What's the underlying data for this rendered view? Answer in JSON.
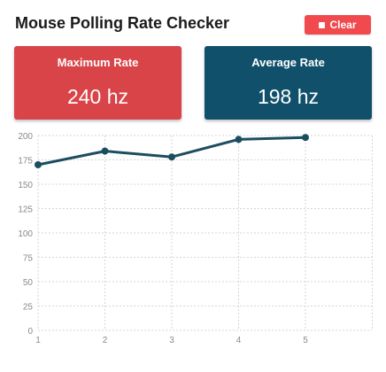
{
  "app": {
    "title": "Mouse Polling Rate Checker"
  },
  "toolbar": {
    "clear_label": "Clear",
    "clear_icon": "stop-icon"
  },
  "stats": {
    "max_label": "Maximum Rate",
    "max_value": "240 hz",
    "avg_label": "Average Rate",
    "avg_value": "198 hz"
  },
  "colors": {
    "max_card": "#d94448",
    "avg_card": "#10506a",
    "clear_button": "#f04a4e",
    "line": "#1b4e60",
    "grid": "#d6d6d6"
  },
  "chart_data": {
    "type": "line",
    "x": [
      1,
      2,
      3,
      4,
      5
    ],
    "series": [
      {
        "values": [
          170,
          184,
          178,
          196,
          198
        ]
      }
    ],
    "ylim": [
      0,
      200
    ],
    "y_ticks": [
      0,
      25,
      50,
      75,
      100,
      125,
      150,
      175,
      200
    ],
    "x_ticks": [
      1,
      2,
      3,
      4,
      5
    ],
    "grid": true,
    "grid_style": "dotted",
    "legend": "none"
  }
}
